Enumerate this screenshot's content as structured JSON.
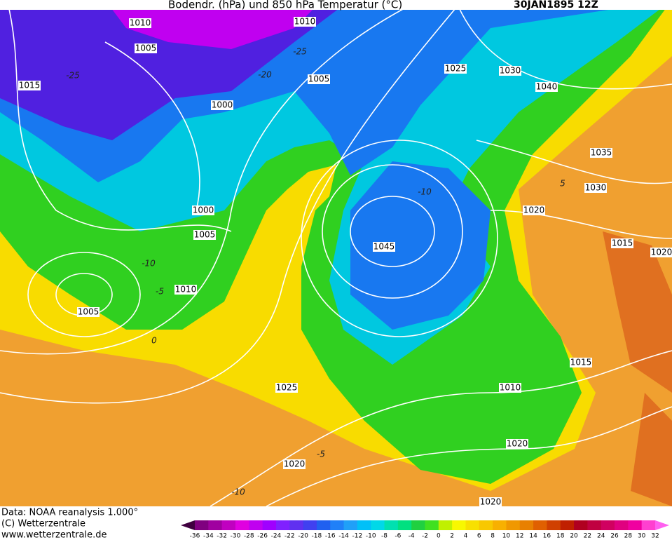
{
  "header": {
    "title": "Bodendr. (hPa)  und 850 hPa Temperatur (°C)",
    "date": "30JAN1895 12Z"
  },
  "isobar_labels": [
    1010,
    1010,
    1005,
    1015,
    1005,
    1000,
    1025,
    1030,
    1040,
    1035,
    1030,
    1020,
    1000,
    1005,
    1045,
    1015,
    1020,
    1010,
    1005,
    1015,
    1025,
    1010,
    1020,
    1020,
    1020
  ],
  "temperature_labels": [
    -25,
    -25,
    -20,
    -10,
    -5,
    0,
    -10,
    5,
    -5,
    -10
  ],
  "footer": {
    "source": "Data: NOAA reanalysis 1.000°",
    "copyright": "(C) Wetterzentrale",
    "url": "www.wetterzentrale.de"
  },
  "colorbar": {
    "ticks": [
      -36,
      -34,
      -32,
      -30,
      -28,
      -26,
      -24,
      -22,
      -20,
      -18,
      -16,
      -14,
      -12,
      -10,
      -8,
      -6,
      -4,
      -2,
      0,
      2,
      4,
      6,
      8,
      10,
      12,
      14,
      16,
      18,
      20,
      22,
      24,
      26,
      28,
      30,
      32
    ],
    "colors": [
      "#400040",
      "#800080",
      "#a000a0",
      "#c000c0",
      "#e000e0",
      "#c000f0",
      "#a000ff",
      "#8020ff",
      "#6030f0",
      "#4040f0",
      "#2060f0",
      "#2080f8",
      "#20a0f8",
      "#00c0f8",
      "#00d8e8",
      "#00e0b0",
      "#00e080",
      "#20d040",
      "#40e020",
      "#c0f000",
      "#f8f800",
      "#f8e000",
      "#f8c800",
      "#f8b000",
      "#f09800",
      "#e88000",
      "#e06000",
      "#d04000",
      "#c02000",
      "#b00020",
      "#c00040",
      "#d00060",
      "#e00080",
      "#f000a0",
      "#ff40d0",
      "#ff60f0"
    ]
  }
}
